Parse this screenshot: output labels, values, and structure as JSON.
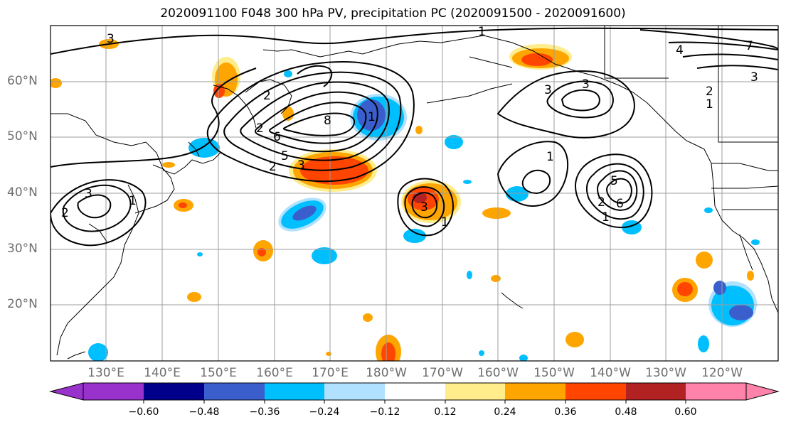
{
  "title": "2020091100 F048 300 hPa PV, precipitation PC (2020091500 - 2020091600)",
  "map": {
    "lat_labels": [
      "60°N",
      "50°N",
      "40°N",
      "30°N",
      "20°N"
    ],
    "lon_labels": [
      "130°E",
      "140°E",
      "150°E",
      "160°E",
      "170°E",
      "180°W",
      "170°W",
      "160°W",
      "150°W",
      "140°W",
      "130°W",
      "120°W"
    ],
    "contour_labels": [
      "1",
      "2",
      "3",
      "4",
      "5",
      "6",
      "7",
      "8"
    ]
  },
  "colorbar": {
    "colors": [
      "#9932cc",
      "#00008b",
      "#3a5fcd",
      "#00bfff",
      "#b0e2ff",
      "#ffffff",
      "#ffec8b",
      "#ffa500",
      "#ff4500",
      "#b22222",
      "#ff82ab"
    ],
    "tick_labels": [
      "−0.60",
      "−0.48",
      "−0.36",
      "−0.24",
      "−0.12",
      "0.12",
      "0.24",
      "0.36",
      "0.48",
      "0.60"
    ]
  },
  "colors": {
    "grid": "#9e9e9e",
    "contour": "#000000",
    "coast": "#000000"
  }
}
